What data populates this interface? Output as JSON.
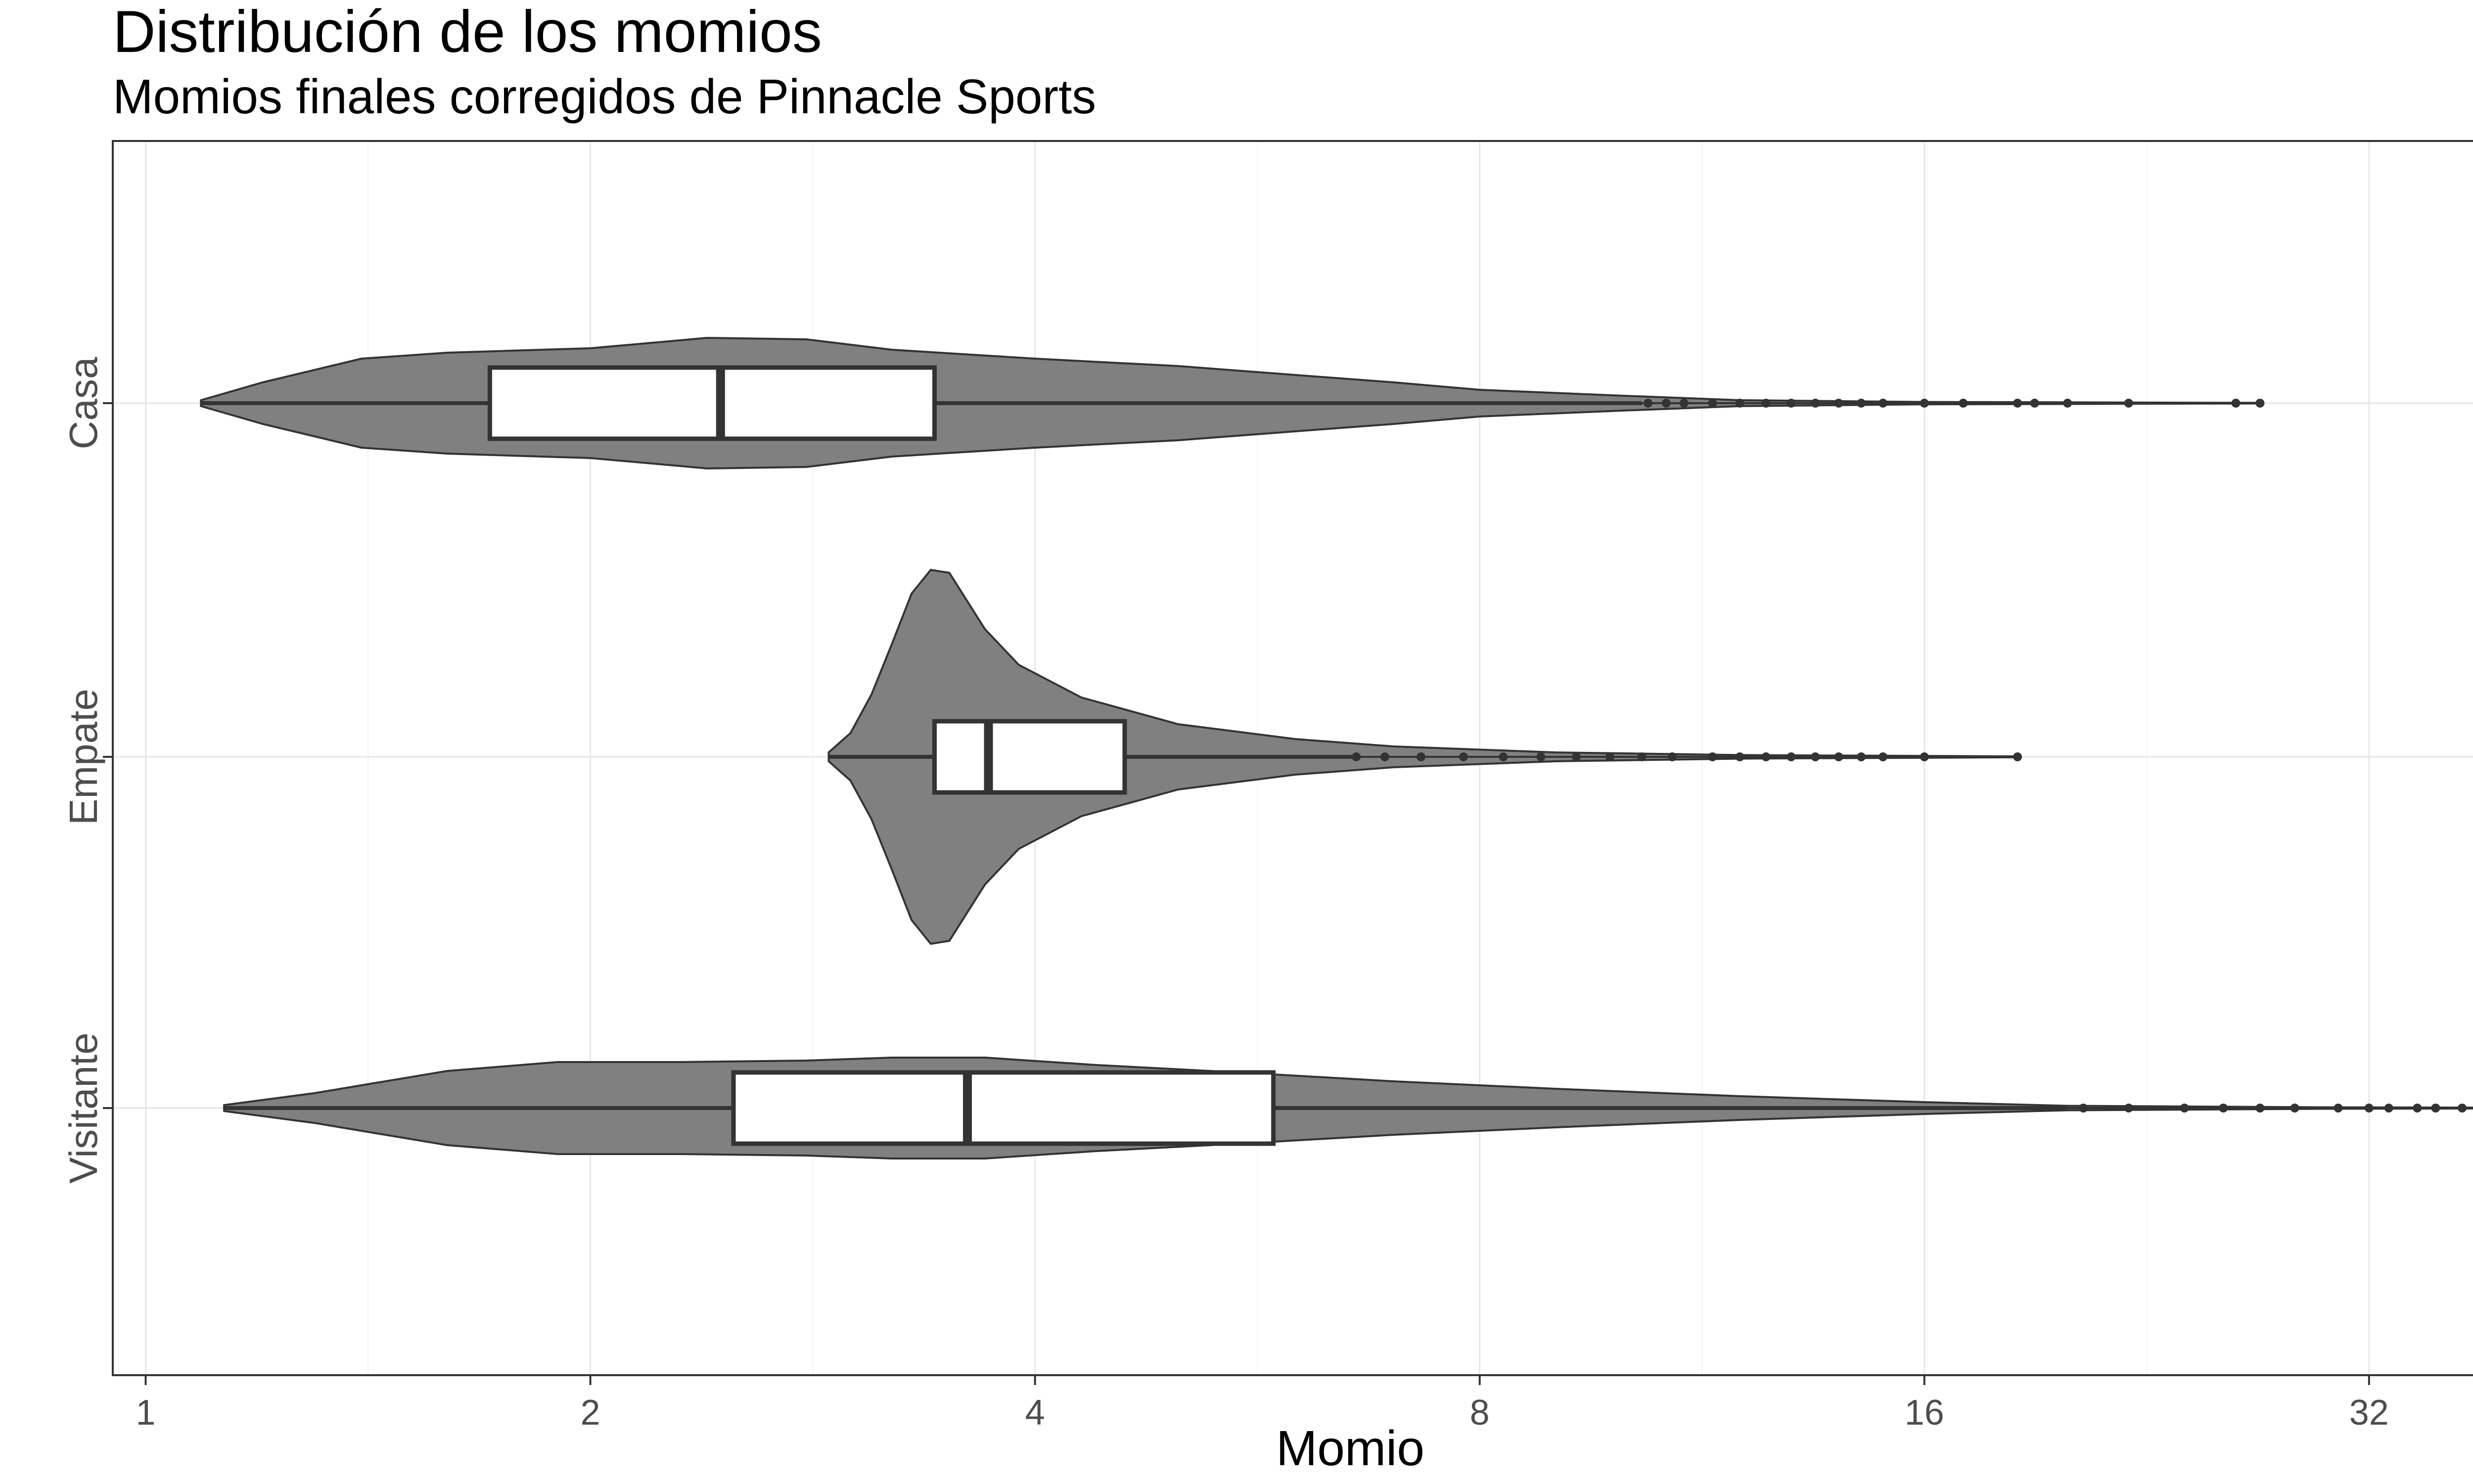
{
  "chart_data": {
    "type": "violin",
    "title": "Distribución de los momios",
    "subtitle": "Momios finales corregidos de Pinnacle Sports",
    "xlabel": "Momio",
    "ylabel": "",
    "x_scale": "log2",
    "xlim": [
      0.95,
      45
    ],
    "x_ticks": [
      1,
      2,
      4,
      8,
      16,
      32
    ],
    "x_tick_labels": [
      "1",
      "2",
      "4",
      "8",
      "16",
      "32"
    ],
    "grid": true,
    "categories": [
      "Casa",
      "Empate",
      "Visitante"
    ],
    "series": [
      {
        "name": "Casa",
        "min": 1.09,
        "q1": 1.71,
        "median": 2.45,
        "q3": 3.42,
        "max": 27.0,
        "outlier_range": [
          10.3,
          27.0
        ],
        "outliers": [
          10.4,
          10.7,
          11.0,
          11.5,
          12.0,
          12.5,
          13.0,
          13.5,
          14.0,
          14.5,
          15.0,
          16.0,
          17.0,
          18.5,
          19.0,
          20.0,
          22.0,
          26.0,
          27.0
        ],
        "density": [
          [
            1.09,
            0.02
          ],
          [
            1.2,
            0.14
          ],
          [
            1.4,
            0.3
          ],
          [
            1.6,
            0.34
          ],
          [
            2.0,
            0.37
          ],
          [
            2.4,
            0.44
          ],
          [
            2.8,
            0.43
          ],
          [
            3.2,
            0.36
          ],
          [
            4.0,
            0.3
          ],
          [
            5.0,
            0.25
          ],
          [
            6.0,
            0.19
          ],
          [
            7.0,
            0.14
          ],
          [
            8.0,
            0.09
          ],
          [
            10.0,
            0.05
          ],
          [
            12.0,
            0.02
          ],
          [
            16.0,
            0.008
          ],
          [
            27.0,
            0.002
          ]
        ]
      },
      {
        "name": "Empate",
        "min": 2.9,
        "q1": 3.42,
        "median": 3.72,
        "q3": 4.6,
        "max": 18.5,
        "outlier_range": [
          6.6,
          18.5
        ],
        "outliers": [
          6.6,
          6.9,
          7.3,
          7.8,
          8.3,
          8.8,
          9.3,
          9.8,
          10.3,
          10.8,
          11.5,
          12.0,
          12.5,
          13.0,
          13.5,
          14.0,
          14.5,
          15.0,
          16.0,
          18.5
        ],
        "density": [
          [
            2.9,
            0.03
          ],
          [
            3.0,
            0.16
          ],
          [
            3.1,
            0.42
          ],
          [
            3.2,
            0.76
          ],
          [
            3.3,
            1.1
          ],
          [
            3.4,
            1.26
          ],
          [
            3.5,
            1.24
          ],
          [
            3.7,
            0.86
          ],
          [
            3.9,
            0.62
          ],
          [
            4.3,
            0.4
          ],
          [
            5.0,
            0.22
          ],
          [
            6.0,
            0.12
          ],
          [
            7.0,
            0.07
          ],
          [
            9.0,
            0.03
          ],
          [
            12.0,
            0.012
          ],
          [
            18.5,
            0.003
          ]
        ]
      },
      {
        "name": "Visitante",
        "min": 1.13,
        "q1": 2.5,
        "median": 3.6,
        "q3": 5.8,
        "max": 42.0,
        "outlier_range": [
          20.0,
          42.0
        ],
        "outliers": [
          20.5,
          22.0,
          24.0,
          25.5,
          27.0,
          28.5,
          30.5,
          32.0,
          33.0,
          34.5,
          35.5,
          37.0,
          42.0
        ],
        "density": [
          [
            1.13,
            0.02
          ],
          [
            1.3,
            0.1
          ],
          [
            1.6,
            0.25
          ],
          [
            1.9,
            0.31
          ],
          [
            2.3,
            0.31
          ],
          [
            2.8,
            0.32
          ],
          [
            3.2,
            0.34
          ],
          [
            3.7,
            0.34
          ],
          [
            4.4,
            0.29
          ],
          [
            5.5,
            0.24
          ],
          [
            7.0,
            0.18
          ],
          [
            9.0,
            0.13
          ],
          [
            12.0,
            0.08
          ],
          [
            16.0,
            0.04
          ],
          [
            20.0,
            0.015
          ],
          [
            30.0,
            0.005
          ],
          [
            42.0,
            0.002
          ]
        ]
      }
    ],
    "colors": {
      "violin_fill": "#808080",
      "violin_stroke": "#333333",
      "box_fill": "#ffffff",
      "box_stroke": "#333333",
      "grid_major": "#e6e6e6",
      "grid_minor": "#f3f3f3",
      "panel_border": "#333333",
      "text": "#000000",
      "axis_text": "#4d4d4d"
    }
  }
}
